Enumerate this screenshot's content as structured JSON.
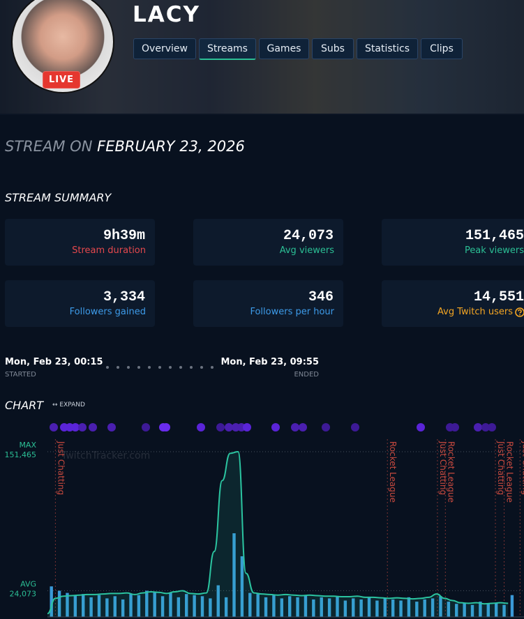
{
  "header": {
    "channel": "LACY",
    "live_badge": "LIVE",
    "tabs": [
      "Overview",
      "Streams",
      "Games",
      "Subs",
      "Statistics",
      "Clips"
    ],
    "active_tab": 1
  },
  "stream": {
    "title_prefix": "STREAM ON",
    "date": "FEBRUARY 23, 2026"
  },
  "summary": {
    "title": "STREAM SUMMARY",
    "cards": [
      {
        "value": "9h39m",
        "label": "Stream duration",
        "color": "#e5484d"
      },
      {
        "value": "24,073",
        "label": "Avg viewers",
        "color": "#2bbf95"
      },
      {
        "value": "151,465",
        "label": "Peak viewers",
        "color": "#2bbf95"
      },
      {
        "value": "3,334",
        "label": "Followers gained",
        "color": "#3d9be9"
      },
      {
        "value": "346",
        "label": "Followers per hour",
        "color": "#3d9be9"
      },
      {
        "value": "14,551",
        "label": "Avg Twitch users",
        "color": "#f5a623",
        "help_icon": true
      }
    ]
  },
  "timeline": {
    "start": "Mon, Feb 23, 00:15",
    "start_label": "STARTED",
    "end": "Mon, Feb 23, 09:55",
    "end_label": "ENDED"
  },
  "chart_section": {
    "title": "CHART",
    "expand": "↔ EXPAND"
  },
  "chart_data": {
    "type": "line",
    "watermark": "TwitchTracker.com",
    "xlim": [
      0,
      600
    ],
    "ylim": [
      0,
      163000
    ],
    "reference_lines": [
      {
        "label": "MAX",
        "value": 151465,
        "value_label": "151,465",
        "color": "#2bbf95"
      },
      {
        "label": "AVG",
        "value": 24073,
        "value_label": "24,073",
        "color": "#2bbf95"
      }
    ],
    "annotations": [
      {
        "x": 10,
        "text": "Just Chatting"
      },
      {
        "x": 428,
        "text": "Rocket League"
      },
      {
        "x": 491,
        "text": "Just Chatting"
      },
      {
        "x": 501,
        "text": "Rocket League"
      },
      {
        "x": 564,
        "text": "Just Chatting"
      },
      {
        "x": 575,
        "text": "Rocket League"
      },
      {
        "x": 595,
        "text": "Just Chatting"
      }
    ],
    "annotation_color": "#c94a3f",
    "series": [
      {
        "kind": "bar",
        "color": "#3a9ad9",
        "x": [
          5,
          15,
          25,
          35,
          45,
          55,
          65,
          75,
          85,
          95,
          105,
          115,
          125,
          135,
          145,
          155,
          165,
          175,
          185,
          195,
          205,
          215,
          225,
          235,
          245,
          255,
          265,
          275,
          285,
          295,
          305,
          315,
          325,
          335,
          345,
          355,
          365,
          375,
          385,
          395,
          405,
          415,
          425,
          435,
          445,
          455,
          465,
          475,
          485,
          495,
          505,
          515,
          525,
          535,
          545,
          555,
          565,
          575,
          585
        ],
        "values": [
          28000,
          24000,
          22000,
          20000,
          21000,
          18000,
          20000,
          17000,
          19000,
          16000,
          21000,
          20000,
          24000,
          23000,
          19000,
          22000,
          18000,
          21000,
          20000,
          19000,
          17000,
          29000,
          18000,
          76700,
          55600,
          22000,
          21000,
          18000,
          20000,
          17000,
          19000,
          18000,
          20000,
          16000,
          18000,
          17000,
          19000,
          15000,
          17000,
          16000,
          18000,
          15000,
          17000,
          16000,
          15000,
          18000,
          14000,
          16000,
          17000,
          19000,
          14000,
          12000,
          13000,
          11000,
          14000,
          12000,
          13000,
          11000,
          20000
        ]
      },
      {
        "kind": "line",
        "color": "#2bc4a0",
        "x": [
          0,
          10,
          20,
          30,
          40,
          50,
          60,
          70,
          80,
          90,
          100,
          110,
          120,
          130,
          140,
          150,
          160,
          170,
          180,
          190,
          200,
          210,
          220,
          230,
          240,
          250,
          260,
          270,
          280,
          290,
          300,
          310,
          320,
          330,
          340,
          350,
          360,
          370,
          380,
          390,
          400,
          410,
          420,
          430,
          440,
          450,
          460,
          470,
          480,
          490,
          500,
          510,
          520,
          530,
          540,
          550,
          560,
          570,
          580
        ],
        "values": [
          3000,
          17000,
          19000,
          19500,
          20000,
          20500,
          20500,
          21000,
          21500,
          21500,
          22000,
          20500,
          22000,
          23000,
          22500,
          21500,
          23000,
          24000,
          21500,
          21000,
          22000,
          60000,
          125000,
          150000,
          151465,
          40000,
          22000,
          21000,
          20500,
          20000,
          20500,
          20000,
          19500,
          20000,
          19500,
          19000,
          19000,
          18500,
          18500,
          19000,
          18000,
          18000,
          17500,
          17000,
          17500,
          17000,
          16500,
          17000,
          18000,
          21000,
          17000,
          15000,
          13000,
          12500,
          13000,
          12000,
          12500,
          13000,
          12500
        ]
      }
    ]
  }
}
